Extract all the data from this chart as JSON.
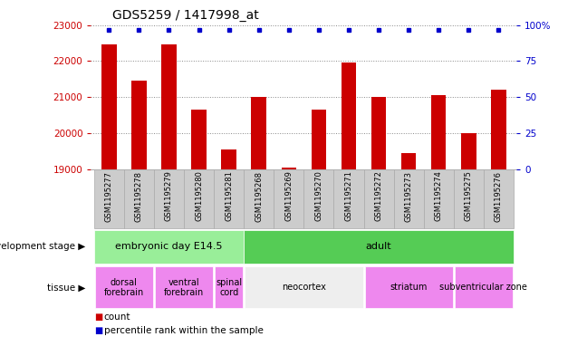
{
  "title": "GDS5259 / 1417998_at",
  "samples": [
    "GSM1195277",
    "GSM1195278",
    "GSM1195279",
    "GSM1195280",
    "GSM1195281",
    "GSM1195268",
    "GSM1195269",
    "GSM1195270",
    "GSM1195271",
    "GSM1195272",
    "GSM1195273",
    "GSM1195274",
    "GSM1195275",
    "GSM1195276"
  ],
  "counts": [
    22450,
    21450,
    22450,
    20650,
    19550,
    21000,
    19050,
    20650,
    21950,
    21000,
    19450,
    21050,
    20000,
    21200
  ],
  "bar_color": "#cc0000",
  "dot_color": "#0000cc",
  "ylim_left": [
    19000,
    23000
  ],
  "yticks_left": [
    19000,
    20000,
    21000,
    22000,
    23000
  ],
  "ylim_right": [
    0,
    100
  ],
  "yticks_right": [
    0,
    25,
    50,
    75,
    100
  ],
  "yticklabels_right": [
    "0",
    "25",
    "50",
    "75",
    "100%"
  ],
  "dev_stage_row": [
    {
      "label": "embryonic day E14.5",
      "start": 0,
      "end": 5,
      "color": "#99ee99"
    },
    {
      "label": "adult",
      "start": 5,
      "end": 14,
      "color": "#55cc55"
    }
  ],
  "tissue_row": [
    {
      "label": "dorsal\nforebrain",
      "start": 0,
      "end": 2,
      "color": "#ee88ee"
    },
    {
      "label": "ventral\nforebrain",
      "start": 2,
      "end": 4,
      "color": "#ee88ee"
    },
    {
      "label": "spinal\ncord",
      "start": 4,
      "end": 5,
      "color": "#ee88ee"
    },
    {
      "label": "neocortex",
      "start": 5,
      "end": 9,
      "color": "#eeeeee"
    },
    {
      "label": "striatum",
      "start": 9,
      "end": 12,
      "color": "#ee88ee"
    },
    {
      "label": "subventricular zone",
      "start": 12,
      "end": 14,
      "color": "#ee88ee"
    }
  ],
  "dev_stage_label": "development stage",
  "tissue_label": "tissue",
  "legend_count": "count",
  "legend_percentile": "percentile rank within the sample",
  "bg_color": "#ffffff",
  "grid_color": "#aaaaaa",
  "tick_color_left": "#cc0000",
  "tick_color_right": "#0000cc",
  "xtick_bg": "#cccccc",
  "xtick_border": "#aaaaaa"
}
